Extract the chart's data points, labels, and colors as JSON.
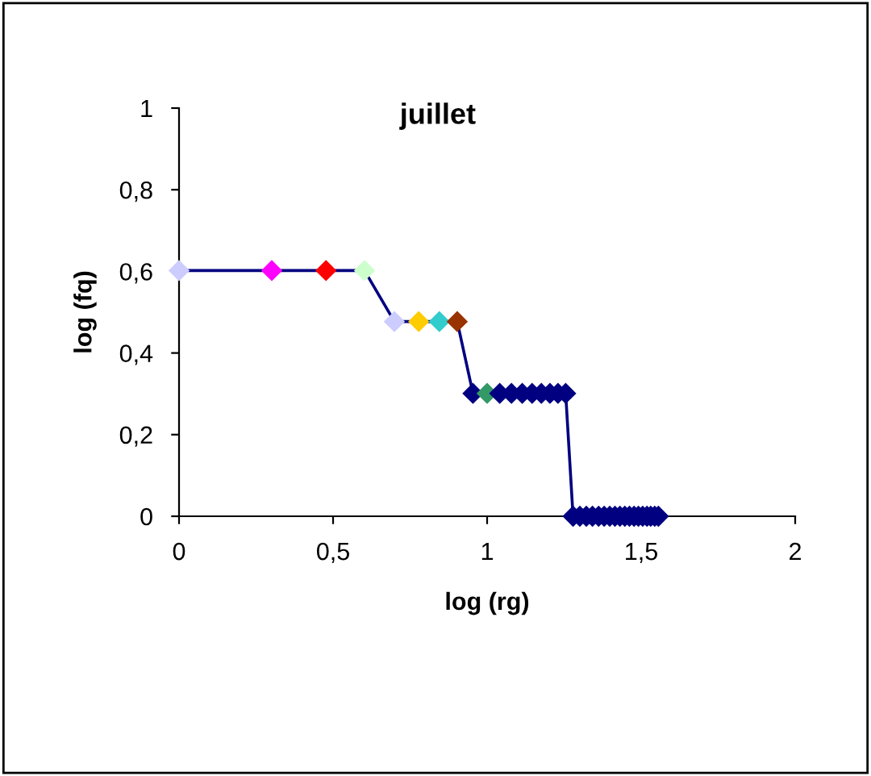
{
  "chart_data": {
    "type": "line",
    "title": "juillet",
    "xlabel": "log (rg)",
    "ylabel": "log (fq)",
    "xlim": [
      0,
      2
    ],
    "ylim": [
      0,
      1
    ],
    "xticks": [
      0,
      {
        "value": 0.5,
        "label": "0,5"
      },
      1,
      {
        "value": 1.5,
        "label": "1,5"
      },
      2
    ],
    "yticks": [
      0,
      {
        "value": 0.2,
        "label": "0,2"
      },
      {
        "value": 0.4,
        "label": "0,4"
      },
      {
        "value": 0.6,
        "label": "0,6"
      },
      {
        "value": 0.8,
        "label": "0,8"
      },
      1
    ],
    "grid": false,
    "legend": false,
    "marker": "diamond",
    "line_style": "solid",
    "series": [
      {
        "color": "#000080",
        "x": [
          0,
          0.301,
          0.477,
          0.602,
          0.699,
          0.778,
          0.845,
          0.903,
          0.954,
          1,
          1.041,
          1.079,
          1.114,
          1.146,
          1.176,
          1.204,
          1.23,
          1.255,
          1.279,
          1.301,
          1.322,
          1.342,
          1.362,
          1.38,
          1.398,
          1.415,
          1.431,
          1.447,
          1.462,
          1.477,
          1.491,
          1.505,
          1.519,
          1.531,
          1.544,
          1.556
        ],
        "values": [
          0.602,
          0.602,
          0.602,
          0.602,
          0.477,
          0.477,
          0.477,
          0.477,
          0.301,
          0.301,
          0.301,
          0.301,
          0.301,
          0.301,
          0.301,
          0.301,
          0.301,
          0.301,
          0,
          0,
          0,
          0,
          0,
          0,
          0,
          0,
          0,
          0,
          0,
          0,
          0,
          0,
          0,
          0,
          0,
          0
        ],
        "colors": [
          "#ccccff",
          "#ff00ff",
          "#ff0000",
          "#ccffcc",
          "#ccccff",
          "#ffcc00",
          "#33cccc",
          "#993300",
          "#000080",
          "#339966",
          "#000080",
          "#000080",
          "#000080",
          "#000080",
          "#000080",
          "#000080",
          "#000080",
          "#000080",
          "#000080",
          "#000080",
          "#000080",
          "#000080",
          "#000080",
          "#000080",
          "#000080",
          "#000080",
          "#000080",
          "#000080",
          "#000080",
          "#000080",
          "#000080",
          "#000080",
          "#000080",
          "#000080",
          "#000080",
          "#000080"
        ]
      }
    ]
  }
}
